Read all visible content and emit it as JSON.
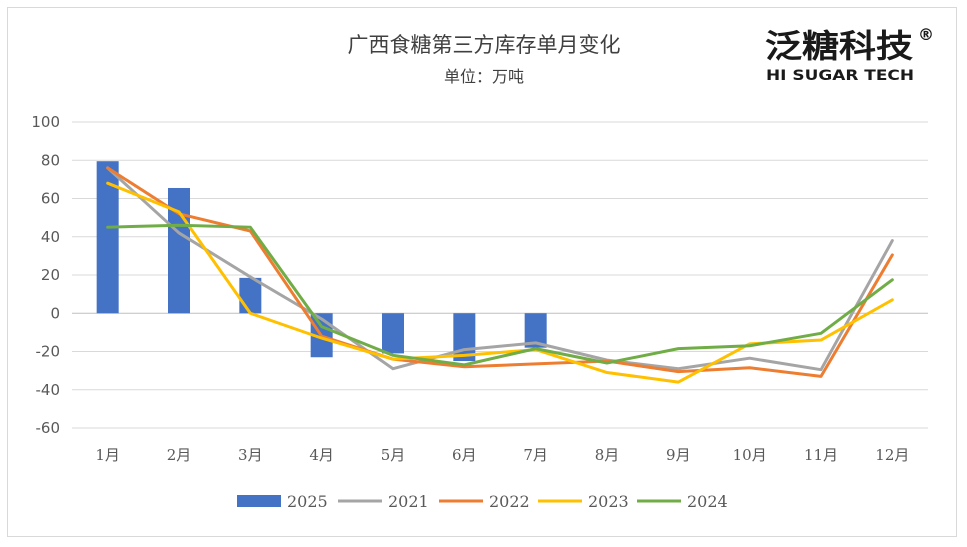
{
  "chart_data": {
    "type": "bar+line",
    "title": "广西食糖第三方库存单月变化",
    "subtitle": "单位：万吨",
    "categories": [
      "1月",
      "2月",
      "3月",
      "4月",
      "5月",
      "6月",
      "7月",
      "8月",
      "9月",
      "10月",
      "11月",
      "12月"
    ],
    "ylim": [
      -60,
      100
    ],
    "yticks": [
      100,
      80,
      60,
      40,
      20,
      0,
      -20,
      -40,
      -60
    ],
    "grid": true,
    "legend_position": "bottom",
    "bar_series": {
      "name": "2025",
      "color": "#4472c4",
      "values": [
        79.5,
        65.5,
        18.5,
        -23,
        -21,
        -25,
        -18,
        null,
        null,
        null,
        null,
        null
      ]
    },
    "line_series": [
      {
        "name": "2021",
        "color": "#a5a5a5",
        "values": [
          76,
          42,
          19,
          -3,
          -29,
          -19,
          -15.5,
          -24.5,
          -29,
          -23.5,
          -29.5,
          38
        ]
      },
      {
        "name": "2022",
        "color": "#ed7d31",
        "values": [
          76,
          52,
          43,
          -12,
          -24,
          -28,
          -26.5,
          -25,
          -30.5,
          -28.5,
          -33,
          30.5
        ]
      },
      {
        "name": "2023",
        "color": "#ffc000",
        "values": [
          68,
          53,
          0,
          -13,
          -24,
          -22,
          -19,
          -31,
          -36,
          -16,
          -14,
          7
        ]
      },
      {
        "name": "2024",
        "color": "#70ad47",
        "values": [
          45,
          46,
          45,
          -7,
          -22,
          -27,
          -18.5,
          -26,
          -18.5,
          -17,
          -10.5,
          17.5
        ]
      }
    ]
  },
  "logo": {
    "brand_cn": "泛糖科技",
    "registered_mark": "®",
    "brand_en": "HI SUGAR TECH"
  }
}
